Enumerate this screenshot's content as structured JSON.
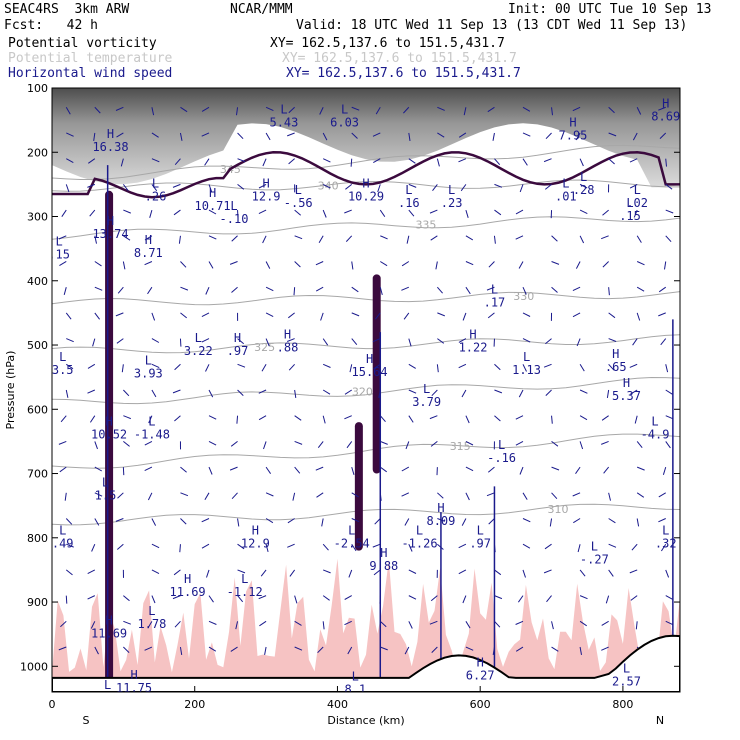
{
  "header": {
    "model": "SEAC4RS  3km ARW",
    "center": "NCAR/MMM",
    "init": "Init: 00 UTC Tue 10 Sep 13",
    "fcst": "Fcst:   42 h",
    "valid": "Valid: 18 UTC Wed 11 Sep 13 (13 CDT Wed 11 Sep 13)",
    "fields": [
      {
        "label": "Potential vorticity",
        "xy": "XY= 162.5,137.6 to 151.5,431.7",
        "color": "#000000"
      },
      {
        "label": "Potential temperature",
        "xy": "XY= 162.5,137.6 to 151.5,431.7",
        "color": "#c8c8c8"
      },
      {
        "label": "Horizontal wind speed",
        "xy": "XY= 162.5,137.6 to 151.5,431.7",
        "color": "#1a1a8c"
      }
    ]
  },
  "chart_data": {
    "type": "cross-section",
    "xlabel": "Distance (km)",
    "ylabel": "Pressure (hPa)",
    "xlim": [
      0,
      880
    ],
    "ylim": [
      1040,
      100
    ],
    "x_ticks": [
      "0",
      "200",
      "400",
      "600",
      "800"
    ],
    "y_ticks": [
      "100",
      "200",
      "300",
      "400",
      "500",
      "600",
      "700",
      "800",
      "900",
      "1000"
    ],
    "end_labels": {
      "left": "S",
      "right": "N"
    },
    "theta_contours": [
      {
        "label": "345",
        "p_left": 240,
        "p_right": 190
      },
      {
        "label": "340",
        "p_left": 255,
        "p_right": 248
      },
      {
        "label": "335",
        "p_left": 330,
        "p_right": 300
      },
      {
        "label": "330",
        "p_left": 435,
        "p_right": 420
      },
      {
        "label": "325",
        "p_left": 510,
        "p_right": 490
      },
      {
        "label": "320",
        "p_left": 590,
        "p_right": 555
      },
      {
        "label": "315",
        "p_left": 690,
        "p_right": 640
      },
      {
        "label": "310",
        "p_left": 775,
        "p_right": 750
      }
    ],
    "extrema": [
      {
        "type": "H",
        "value": "16.38",
        "x": 82,
        "p": 178
      },
      {
        "type": "L",
        "value": "5.43",
        "x": 325,
        "p": 140
      },
      {
        "type": "L",
        "value": "6.03",
        "x": 410,
        "p": 140
      },
      {
        "type": "H",
        "value": "7.95",
        "x": 730,
        "p": 160
      },
      {
        "type": "H",
        "value": "8.69",
        "x": 860,
        "p": 130
      },
      {
        "type": "L",
        "value": ".26",
        "x": 145,
        "p": 255
      },
      {
        "type": "H",
        "value": "10.71",
        "x": 225,
        "p": 270
      },
      {
        "type": "L",
        "value": "-.10",
        "x": 255,
        "p": 290
      },
      {
        "type": "H",
        "value": "12.9",
        "x": 300,
        "p": 255
      },
      {
        "type": "L",
        "value": "-.56",
        "x": 345,
        "p": 265
      },
      {
        "type": "H",
        "value": "10.29",
        "x": 440,
        "p": 255
      },
      {
        "type": "L",
        "value": ".16",
        "x": 500,
        "p": 265
      },
      {
        "type": "L",
        "value": ".23",
        "x": 560,
        "p": 265
      },
      {
        "type": "L",
        "value": ".01",
        "x": 720,
        "p": 255
      },
      {
        "type": "L",
        "value": ".28",
        "x": 745,
        "p": 245
      },
      {
        "type": "L",
        "value": ".02",
        "x": 820,
        "p": 265
      },
      {
        "type": "L",
        "value": ".15",
        "x": 810,
        "p": 285
      },
      {
        "type": "L",
        "value": ".15",
        "x": 10,
        "p": 345
      },
      {
        "type": "H",
        "value": "13.74",
        "x": 82,
        "p": 313
      },
      {
        "type": "H",
        "value": "8.71",
        "x": 135,
        "p": 343
      },
      {
        "type": "L",
        "value": ".17",
        "x": 620,
        "p": 420
      },
      {
        "type": "L",
        "value": "3.22",
        "x": 205,
        "p": 495
      },
      {
        "type": "H",
        "value": ".97",
        "x": 260,
        "p": 495
      },
      {
        "type": "H",
        "value": ".88",
        "x": 330,
        "p": 490
      },
      {
        "type": "H",
        "value": "1.22",
        "x": 590,
        "p": 490
      },
      {
        "type": "L",
        "value": "3.5",
        "x": 15,
        "p": 525
      },
      {
        "type": "L",
        "value": "3.93",
        "x": 135,
        "p": 530
      },
      {
        "type": "H",
        "value": "15.64",
        "x": 445,
        "p": 528
      },
      {
        "type": "L",
        "value": "1.13",
        "x": 665,
        "p": 525
      },
      {
        "type": "H",
        "value": ".65",
        "x": 790,
        "p": 520
      },
      {
        "type": "L",
        "value": "3.79",
        "x": 525,
        "p": 575
      },
      {
        "type": "H",
        "value": "5.37",
        "x": 805,
        "p": 565
      },
      {
        "type": "H",
        "value": "10.52",
        "x": 80,
        "p": 625
      },
      {
        "type": "L",
        "value": "-1.48",
        "x": 140,
        "p": 625
      },
      {
        "type": "L",
        "value": "-4.9",
        "x": 845,
        "p": 625
      },
      {
        "type": "L",
        "value": "-.16",
        "x": 630,
        "p": 662
      },
      {
        "type": "L",
        "value": "1.5",
        "x": 75,
        "p": 720
      },
      {
        "type": "L",
        "value": ".49",
        "x": 15,
        "p": 795
      },
      {
        "type": "H",
        "value": "12.9",
        "x": 285,
        "p": 795
      },
      {
        "type": "L",
        "value": "-2.54",
        "x": 420,
        "p": 795
      },
      {
        "type": "H",
        "value": "8.09",
        "x": 545,
        "p": 760
      },
      {
        "type": "L",
        "value": "-1.26",
        "x": 515,
        "p": 795
      },
      {
        "type": "L",
        "value": ".97",
        "x": 600,
        "p": 795
      },
      {
        "type": "L",
        "value": "-.27",
        "x": 760,
        "p": 820
      },
      {
        "type": "L",
        "value": ".32",
        "x": 860,
        "p": 795
      },
      {
        "type": "H",
        "value": "9.88",
        "x": 465,
        "p": 830
      },
      {
        "type": "H",
        "value": "11.69",
        "x": 190,
        "p": 870
      },
      {
        "type": "L",
        "value": "-1.12",
        "x": 270,
        "p": 870
      },
      {
        "type": "L",
        "value": "1.78",
        "x": 140,
        "p": 920
      },
      {
        "type": "H",
        "value": "11.69",
        "x": 80,
        "p": 935
      },
      {
        "type": "H",
        "value": "11.75",
        "x": 115,
        "p": 1020
      },
      {
        "type": "H",
        "value": "6.27",
        "x": 600,
        "p": 1000
      },
      {
        "type": "L",
        "value": "2.57",
        "x": 805,
        "p": 1010
      },
      {
        "type": "L",
        "value": "8.1",
        "x": 425,
        "p": 1022
      },
      {
        "type": "L",
        "value": ".64",
        "x": 78,
        "p": 1035
      }
    ],
    "pv_highlights": [
      {
        "x": 80,
        "p_top": 260,
        "p_bottom": 1030
      },
      {
        "x": 455,
        "p_top": 390,
        "p_bottom": 700
      },
      {
        "x": 430,
        "p_top": 620,
        "p_bottom": 820
      }
    ],
    "wind_jets": [
      {
        "x": 78,
        "p_top": 220,
        "p_bottom": 1030
      },
      {
        "x": 460,
        "p_top": 480,
        "p_bottom": 1030
      },
      {
        "x": 870,
        "p_top": 460,
        "p_bottom": 1000
      },
      {
        "x": 620,
        "p_top": 720,
        "p_bottom": 1020
      },
      {
        "x": 545,
        "p_top": 760,
        "p_bottom": 1020
      }
    ]
  }
}
